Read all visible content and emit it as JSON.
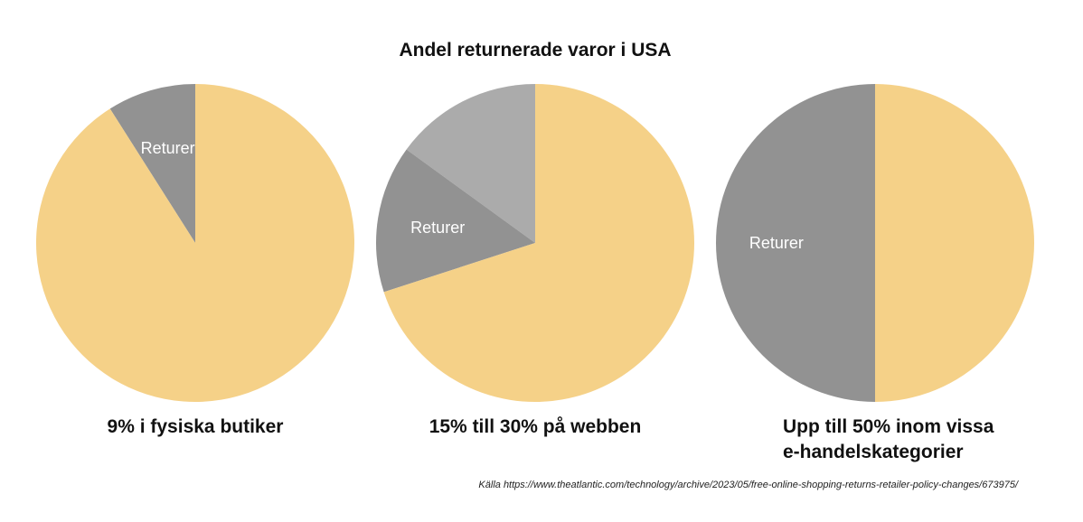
{
  "colors": {
    "remainder": "#f5d188",
    "returns": "#929292",
    "returns_extra": "#ababab",
    "text": "#111111"
  },
  "chart_data": {
    "type": "pie",
    "title": "Andel returnerade varor i USA",
    "source": "Källa https://www.theatlantic.com/technology/archive/2023/05/free-online-shopping-returns-retailer-policy-changes/673975/",
    "pies": [
      {
        "caption_lines": [
          "9% i fysiska butiker"
        ],
        "slices": [
          {
            "label": "Returer",
            "value": 9,
            "color_key": "returns"
          },
          {
            "label": "",
            "value": 91,
            "color_key": "remainder"
          }
        ]
      },
      {
        "caption_lines": [
          "15% till 30% på webben"
        ],
        "slices": [
          {
            "label": "",
            "value": 15,
            "color_key": "returns_extra"
          },
          {
            "label": "Returer",
            "value": 15,
            "color_key": "returns"
          },
          {
            "label": "",
            "value": 70,
            "color_key": "remainder"
          }
        ]
      },
      {
        "caption_lines": [
          "Upp till 50% inom vissa",
          "e-handelskategorier"
        ],
        "slices": [
          {
            "label": "Returer",
            "value": 50,
            "color_key": "returns"
          },
          {
            "label": "",
            "value": 50,
            "color_key": "remainder"
          }
        ]
      }
    ]
  }
}
